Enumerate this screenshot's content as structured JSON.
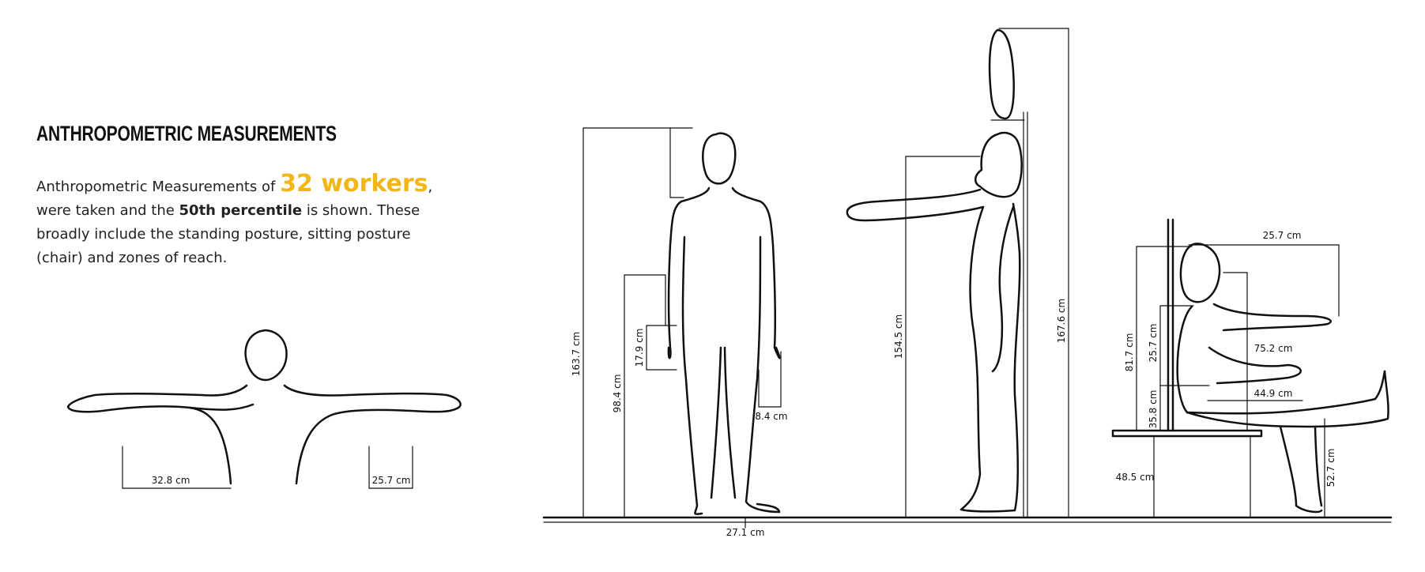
{
  "header": {
    "title": "ANTHROPOMETRIC MEASUREMENTS"
  },
  "intro": {
    "before": "Anthropometric Measurements of ",
    "highlight": "32 workers",
    "after_comma": ",",
    "line2a": " were taken and the ",
    "bold": "50th percentile",
    "rest": " is shown. These broadly include the standing posture, sitting posture (chair) and zones of reach.",
    "highlight_color": "#f2b616"
  },
  "reach_view": {
    "left_label": "32.8 cm",
    "right_label": "25.7 cm"
  },
  "front_view": {
    "height": "163.7 cm",
    "hand_height": "98.4 cm",
    "hand_length": "17.9 cm",
    "hand_width": "8.4 cm",
    "foot": "27.1 cm"
  },
  "side_view": {
    "shoulder_height": "154.5 cm",
    "overhead_reach": "167.6 cm"
  },
  "seated_view": {
    "forward_reach": "25.7 cm",
    "sitting_height": "81.7 cm",
    "shoulder_to_elbow": "25.7 cm",
    "elbow_height": "35.8 cm",
    "arm_reach": "75.2 cm",
    "thigh_length": "44.9 cm",
    "seat_height": "48.5 cm",
    "knee_height": "52.7 cm"
  }
}
